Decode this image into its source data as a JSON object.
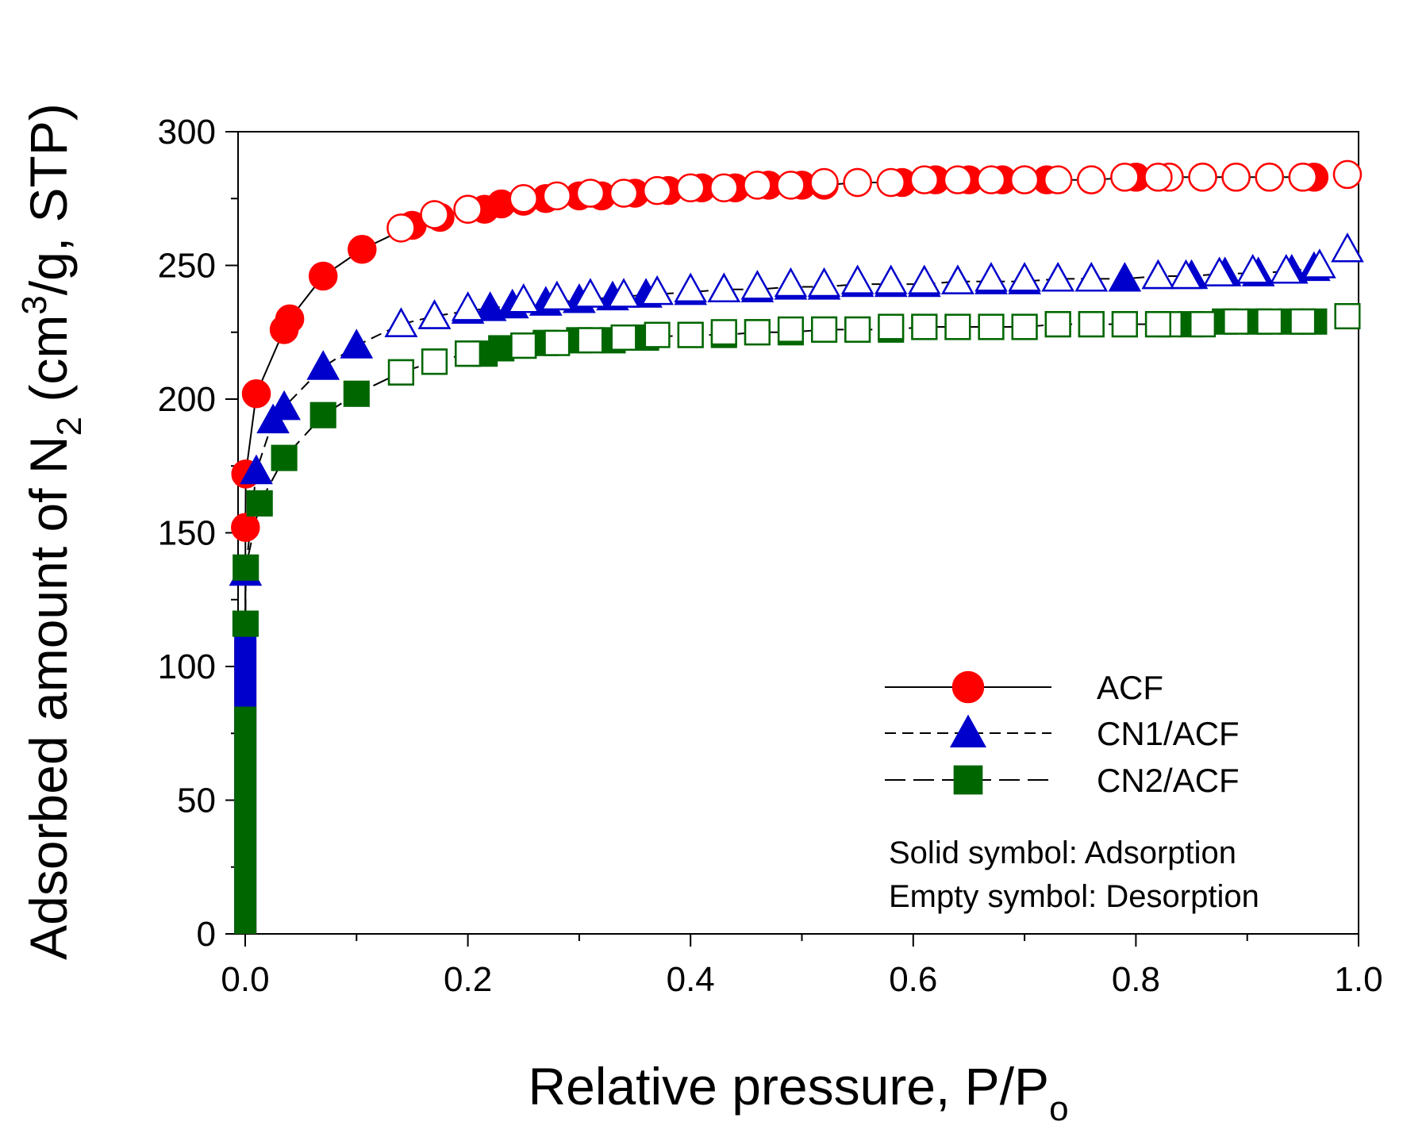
{
  "chart_data": {
    "type": "scatter",
    "xlabel": "Relative pressure, P/P",
    "xlabel_sub": "o",
    "ylabel_pre": "Adsorbed amount of N",
    "ylabel_sub": "2",
    "ylabel_mid": " (cm",
    "ylabel_sup": "3",
    "ylabel_post": "/g, STP)",
    "xlim": [
      0,
      1.0
    ],
    "ylim": [
      0,
      300
    ],
    "xticks": [
      "0.0",
      "0.2",
      "0.4",
      "0.6",
      "0.8",
      "1.0"
    ],
    "yticks": [
      "0",
      "50",
      "100",
      "150",
      "200",
      "250",
      "300"
    ],
    "legend_position": "bottom-right",
    "note_lines": [
      "Solid symbol: Adsorption",
      "Empty symbol: Desorption"
    ],
    "series": [
      {
        "name": "ACF",
        "marker": "circle",
        "color": "#ff0000",
        "line_style": "solid",
        "low_pressure_range": [
          0,
          110
        ],
        "adsorption": [
          [
            0.0002,
            152
          ],
          [
            0.0005,
            172
          ],
          [
            0.01,
            202
          ],
          [
            0.035,
            226
          ],
          [
            0.04,
            230
          ],
          [
            0.07,
            246
          ],
          [
            0.105,
            256
          ],
          [
            0.15,
            265
          ],
          [
            0.175,
            268
          ],
          [
            0.2,
            271
          ],
          [
            0.215,
            271
          ],
          [
            0.23,
            273
          ],
          [
            0.25,
            274
          ],
          [
            0.27,
            275
          ],
          [
            0.3,
            276
          ],
          [
            0.32,
            276
          ],
          [
            0.35,
            277
          ],
          [
            0.38,
            278
          ],
          [
            0.41,
            279
          ],
          [
            0.44,
            279
          ],
          [
            0.47,
            280
          ],
          [
            0.5,
            280
          ],
          [
            0.52,
            280
          ],
          [
            0.55,
            281
          ],
          [
            0.59,
            281
          ],
          [
            0.62,
            282
          ],
          [
            0.65,
            282
          ],
          [
            0.68,
            282
          ],
          [
            0.7,
            282
          ],
          [
            0.72,
            282
          ],
          [
            0.76,
            282
          ],
          [
            0.8,
            283
          ],
          [
            0.83,
            283
          ],
          [
            0.86,
            283
          ],
          [
            0.89,
            283
          ],
          [
            0.92,
            283
          ],
          [
            0.95,
            283
          ],
          [
            0.96,
            283
          ]
        ],
        "desorption": [
          [
            0.99,
            284
          ],
          [
            0.95,
            283
          ],
          [
            0.92,
            283
          ],
          [
            0.89,
            283
          ],
          [
            0.86,
            283
          ],
          [
            0.83,
            283
          ],
          [
            0.82,
            283
          ],
          [
            0.79,
            283
          ],
          [
            0.76,
            282
          ],
          [
            0.73,
            282
          ],
          [
            0.7,
            282
          ],
          [
            0.67,
            282
          ],
          [
            0.64,
            282
          ],
          [
            0.61,
            282
          ],
          [
            0.58,
            281
          ],
          [
            0.55,
            281
          ],
          [
            0.52,
            281
          ],
          [
            0.49,
            280
          ],
          [
            0.46,
            280
          ],
          [
            0.43,
            279
          ],
          [
            0.4,
            279
          ],
          [
            0.37,
            278
          ],
          [
            0.34,
            277
          ],
          [
            0.31,
            277
          ],
          [
            0.28,
            276
          ],
          [
            0.25,
            275
          ],
          [
            0.2,
            271
          ],
          [
            0.17,
            269
          ],
          [
            0.14,
            264
          ]
        ]
      },
      {
        "name": "CN1/ACF",
        "marker": "triangle",
        "color": "#0000cc",
        "line_style": "dashed",
        "low_pressure_range": [
          0,
          112
        ],
        "adsorption": [
          [
            0.0003,
            135
          ],
          [
            0.01,
            173
          ],
          [
            0.025,
            192
          ],
          [
            0.035,
            197
          ],
          [
            0.07,
            212
          ],
          [
            0.1,
            220
          ],
          [
            0.14,
            228
          ],
          [
            0.17,
            231
          ],
          [
            0.2,
            233
          ],
          [
            0.22,
            234
          ],
          [
            0.24,
            235
          ],
          [
            0.27,
            236
          ],
          [
            0.3,
            237
          ],
          [
            0.33,
            238
          ],
          [
            0.36,
            239
          ],
          [
            0.4,
            240
          ],
          [
            0.43,
            241
          ],
          [
            0.46,
            241
          ],
          [
            0.49,
            242
          ],
          [
            0.52,
            242
          ],
          [
            0.55,
            243
          ],
          [
            0.58,
            243
          ],
          [
            0.61,
            243
          ],
          [
            0.64,
            244
          ],
          [
            0.67,
            244
          ],
          [
            0.7,
            244
          ],
          [
            0.73,
            245
          ],
          [
            0.76,
            245
          ],
          [
            0.79,
            245
          ],
          [
            0.82,
            246
          ],
          [
            0.85,
            246
          ],
          [
            0.88,
            247
          ],
          [
            0.91,
            247
          ],
          [
            0.94,
            248
          ],
          [
            0.96,
            249
          ]
        ],
        "desorption": [
          [
            0.99,
            256
          ],
          [
            0.965,
            250
          ],
          [
            0.935,
            248
          ],
          [
            0.905,
            248
          ],
          [
            0.875,
            247
          ],
          [
            0.845,
            246
          ],
          [
            0.82,
            246
          ],
          [
            0.76,
            245
          ],
          [
            0.73,
            245
          ],
          [
            0.7,
            245
          ],
          [
            0.67,
            245
          ],
          [
            0.64,
            244
          ],
          [
            0.61,
            244
          ],
          [
            0.58,
            244
          ],
          [
            0.55,
            244
          ],
          [
            0.52,
            243
          ],
          [
            0.49,
            243
          ],
          [
            0.46,
            242
          ],
          [
            0.43,
            241
          ],
          [
            0.4,
            241
          ],
          [
            0.37,
            240
          ],
          [
            0.34,
            239
          ],
          [
            0.31,
            239
          ],
          [
            0.28,
            238
          ],
          [
            0.25,
            237
          ],
          [
            0.2,
            234
          ],
          [
            0.17,
            231
          ],
          [
            0.14,
            228
          ]
        ]
      },
      {
        "name": "CN2/ACF",
        "marker": "square",
        "color": "#006600",
        "line_style": "long-dashed",
        "low_pressure_range": [
          0,
          85
        ],
        "adsorption": [
          [
            0.0003,
            116
          ],
          [
            0.0005,
            137
          ],
          [
            0.013,
            161
          ],
          [
            0.035,
            178
          ],
          [
            0.07,
            194
          ],
          [
            0.1,
            202
          ],
          [
            0.14,
            210
          ],
          [
            0.17,
            214
          ],
          [
            0.2,
            217
          ],
          [
            0.215,
            217
          ],
          [
            0.23,
            219
          ],
          [
            0.25,
            220
          ],
          [
            0.27,
            221
          ],
          [
            0.3,
            222
          ],
          [
            0.33,
            222
          ],
          [
            0.36,
            223
          ],
          [
            0.4,
            224
          ],
          [
            0.43,
            224
          ],
          [
            0.46,
            225
          ],
          [
            0.49,
            225
          ],
          [
            0.52,
            226
          ],
          [
            0.55,
            226
          ],
          [
            0.58,
            226
          ],
          [
            0.61,
            227
          ],
          [
            0.64,
            227
          ],
          [
            0.67,
            227
          ],
          [
            0.7,
            227
          ],
          [
            0.73,
            228
          ],
          [
            0.76,
            228
          ],
          [
            0.79,
            228
          ],
          [
            0.82,
            228
          ],
          [
            0.85,
            228
          ],
          [
            0.88,
            229
          ],
          [
            0.91,
            229
          ],
          [
            0.94,
            229
          ],
          [
            0.96,
            229
          ]
        ],
        "desorption": [
          [
            0.99,
            231
          ],
          [
            0.95,
            229
          ],
          [
            0.92,
            229
          ],
          [
            0.89,
            229
          ],
          [
            0.86,
            228
          ],
          [
            0.83,
            228
          ],
          [
            0.82,
            228
          ],
          [
            0.79,
            228
          ],
          [
            0.76,
            228
          ],
          [
            0.73,
            228
          ],
          [
            0.7,
            227
          ],
          [
            0.67,
            227
          ],
          [
            0.64,
            227
          ],
          [
            0.61,
            227
          ],
          [
            0.58,
            227
          ],
          [
            0.55,
            226
          ],
          [
            0.52,
            226
          ],
          [
            0.49,
            226
          ],
          [
            0.46,
            225
          ],
          [
            0.43,
            225
          ],
          [
            0.4,
            224
          ],
          [
            0.37,
            224
          ],
          [
            0.34,
            223
          ],
          [
            0.31,
            222
          ],
          [
            0.28,
            221
          ],
          [
            0.25,
            220
          ],
          [
            0.2,
            217
          ],
          [
            0.17,
            214
          ],
          [
            0.14,
            210
          ]
        ]
      }
    ]
  }
}
